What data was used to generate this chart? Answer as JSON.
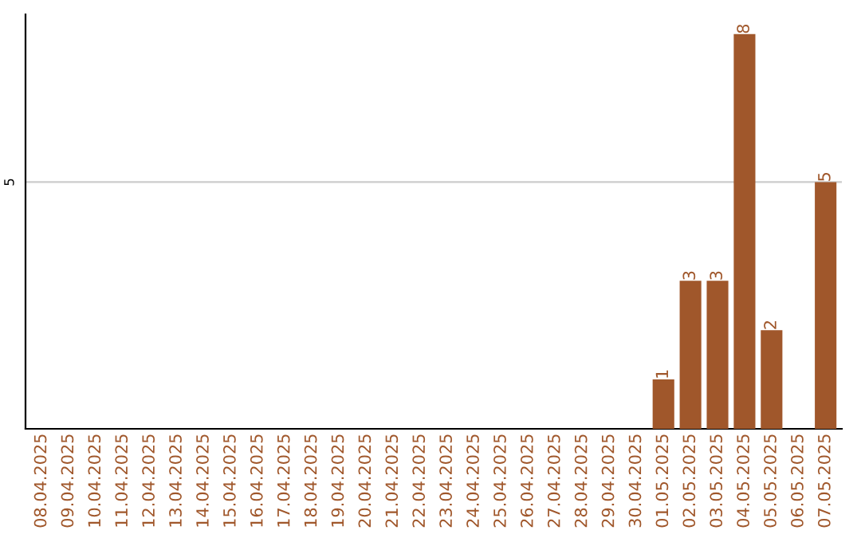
{
  "chart_data": {
    "type": "bar",
    "categories": [
      "08.04.2025",
      "09.04.2025",
      "10.04.2025",
      "11.04.2025",
      "12.04.2025",
      "13.04.2025",
      "14.04.2025",
      "15.04.2025",
      "16.04.2025",
      "17.04.2025",
      "18.04.2025",
      "19.04.2025",
      "20.04.2025",
      "21.04.2025",
      "22.04.2025",
      "23.04.2025",
      "24.04.2025",
      "25.04.2025",
      "26.04.2025",
      "27.04.2025",
      "28.04.2025",
      "29.04.2025",
      "30.04.2025",
      "01.05.2025",
      "02.05.2025",
      "03.05.2025",
      "04.05.2025",
      "05.05.2025",
      "06.05.2025",
      "07.05.2025"
    ],
    "values": [
      null,
      null,
      null,
      null,
      null,
      null,
      null,
      null,
      null,
      null,
      null,
      null,
      null,
      null,
      null,
      null,
      null,
      null,
      null,
      null,
      null,
      null,
      null,
      1,
      3,
      3,
      8,
      2,
      null,
      5
    ],
    "color": "#a0572b",
    "ylim": [
      0,
      8.4
    ],
    "yticks": [
      5
    ],
    "grid": "y",
    "data_labels": true
  }
}
